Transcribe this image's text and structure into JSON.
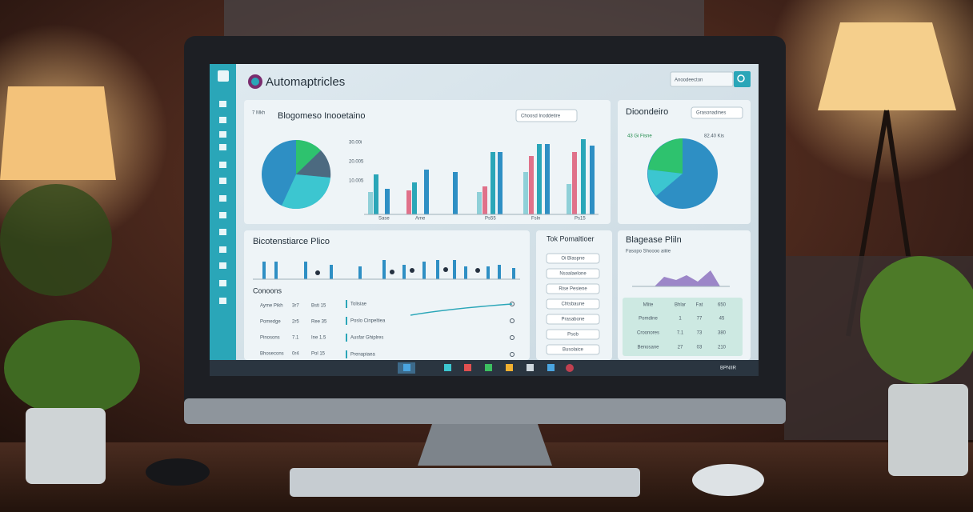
{
  "header": {
    "title": "Automaptricles",
    "search": "Anoodeecton"
  },
  "overview": {
    "kicker": "7 Mkh",
    "title": "Blogomeso Inooetaino",
    "button": "Choosd Inoddetire",
    "axis": [
      "30.00i",
      "20.005",
      "10.005"
    ],
    "bar_labels": [
      "Sase",
      "Ame",
      "Ps55",
      "Fsln",
      "Ps15"
    ]
  },
  "distribution": {
    "title": "Dioondeiro",
    "button": "Grasonadines",
    "left": "43 Gi Fisne",
    "right": "82.40 Kis"
  },
  "performance": {
    "title": "Bicotenstiarce Plico",
    "section": "Conoons",
    "rows": [
      [
        "Ayme Pikh",
        "3r7",
        "Bsti 15"
      ],
      [
        "Pomedge",
        "2r5",
        "Ree 35"
      ],
      [
        "Pinosons",
        "7.1",
        "Ine 1.5"
      ],
      [
        "Bhosecons",
        "0r4",
        "Pol 15"
      ]
    ],
    "links": [
      "Tolisiae",
      "Poslo Cinpeltiea",
      "Ausfar Ghiplres",
      "Prenapiaea"
    ]
  },
  "tasks": {
    "title": "Tok Pomaltioer",
    "items": [
      "Oi Blaspne",
      "Nsoalaelone",
      "Rise Pesiene",
      "Chtsbaune",
      "Prasabone",
      "Psob",
      "Busolaice"
    ]
  },
  "summary": {
    "title": "Blagease Pliln",
    "caption": "Fasopo Shoooo aiiiie",
    "table": {
      "header": [
        "Mlite",
        "Bhlar",
        "Fat",
        "650"
      ],
      "rows": [
        [
          "Pomdine",
          "1",
          "77",
          "45"
        ],
        [
          "Croonores",
          "7.1",
          "73",
          "380"
        ],
        [
          "Benosane",
          "27",
          "03",
          "210"
        ]
      ]
    }
  },
  "taskbar": {
    "clock": "BPNIIR"
  }
}
